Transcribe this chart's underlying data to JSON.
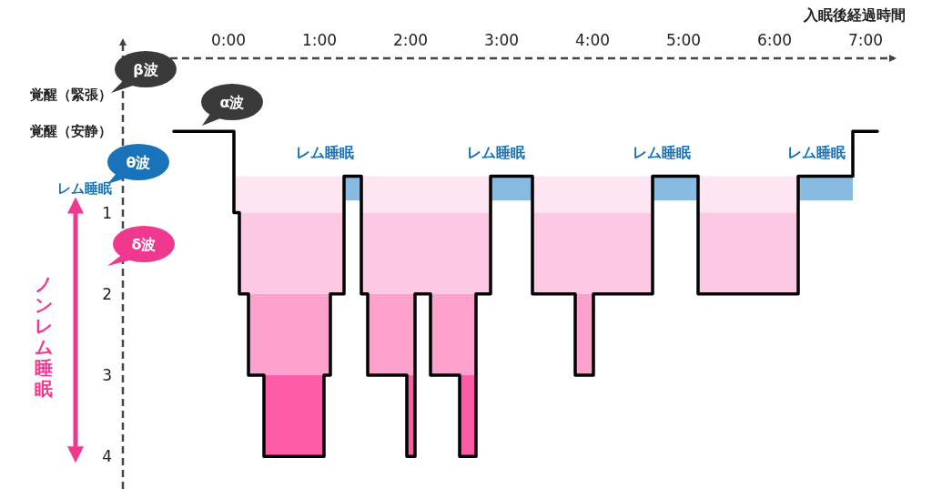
{
  "chart_data": {
    "type": "step",
    "xlabel": "入眠後経過時間",
    "ylabel": "ノンレム睡眠",
    "xlim": [
      -1.16,
      7.32
    ],
    "ylim": [
      4.4,
      -0.9
    ],
    "xticks": [
      {
        "value": 0,
        "label": "0:00"
      },
      {
        "value": 1,
        "label": "1:00"
      },
      {
        "value": 2,
        "label": "2:00"
      },
      {
        "value": 3,
        "label": "3:00"
      },
      {
        "value": 4,
        "label": "4:00"
      },
      {
        "value": 5,
        "label": "5:00"
      },
      {
        "value": 6,
        "label": "6:00"
      },
      {
        "value": 7,
        "label": "7:00"
      }
    ],
    "yticks": [
      {
        "value": -0.45,
        "label": "覚醒（緊張）"
      },
      {
        "value": 0,
        "label": "覚醒（安静）"
      },
      {
        "value": 0.7,
        "label": "レム睡眠"
      },
      1,
      2,
      3,
      4
    ],
    "grid": false,
    "series": [
      {
        "color": "#000000",
        "x": [
          -0.6,
          0.06,
          0.12,
          0.22,
          0.39,
          1.05,
          1.12,
          1.27,
          1.46,
          1.53,
          1.96,
          2.05,
          2.22,
          2.54,
          2.72,
          2.88,
          3.34,
          3.81,
          4.01,
          4.66,
          5.16,
          6.26,
          6.86,
          7.13
        ],
        "values": [
          0,
          1,
          2,
          3,
          4,
          3,
          2,
          0.55,
          2,
          3,
          4,
          2,
          3,
          4,
          2,
          0.55,
          2,
          3,
          2,
          0.55,
          2,
          0.55,
          0,
          0
        ]
      },
      {
        "type": "bar",
        "color": "#88bbe2",
        "x": [
          1.365,
          3.11,
          4.91,
          6.56
        ],
        "base": [
          0.55,
          0.55,
          0.55,
          0.55
        ],
        "values": [
          0.3,
          0.3,
          0.3,
          0.3
        ]
      }
    ],
    "bands": [
      {
        "axis": "y",
        "from": 0.55,
        "to": 1,
        "color": "#fde6f2"
      },
      {
        "axis": "y",
        "from": 1,
        "to": 2,
        "color": "#fdc8e3"
      },
      {
        "axis": "y",
        "from": 2,
        "to": 3,
        "color": "#fda2cc"
      },
      {
        "axis": "y",
        "from": 3,
        "to": 4,
        "color": "#fe5ca7"
      }
    ],
    "annotations": [
      "レム睡眠",
      "レム睡眠",
      "レム睡眠",
      "レム睡眠",
      "β波",
      "α波",
      "θ波",
      "δ波"
    ]
  }
}
